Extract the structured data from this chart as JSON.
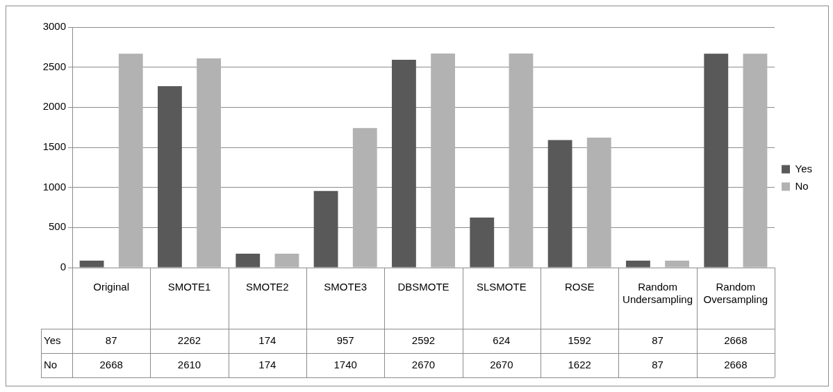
{
  "chart_data": {
    "type": "bar",
    "categories": [
      "Original",
      "SMOTE1",
      "SMOTE2",
      "SMOTE3",
      "DBSMOTE",
      "SLSMOTE",
      "ROSE",
      "Random Undersampling",
      "Random Oversampling"
    ],
    "series": [
      {
        "name": "Yes",
        "color": "#595959",
        "values": [
          87,
          2262,
          174,
          957,
          2592,
          624,
          1592,
          87,
          2668
        ]
      },
      {
        "name": "No",
        "color": "#b2b2b2",
        "values": [
          2668,
          2610,
          174,
          1740,
          2670,
          2670,
          1622,
          87,
          2668
        ]
      }
    ],
    "ylim": [
      0,
      3000
    ],
    "yticks": [
      0,
      500,
      1000,
      1500,
      2000,
      2500,
      3000
    ],
    "grid": "y",
    "legend": "right",
    "data_labels": true
  }
}
